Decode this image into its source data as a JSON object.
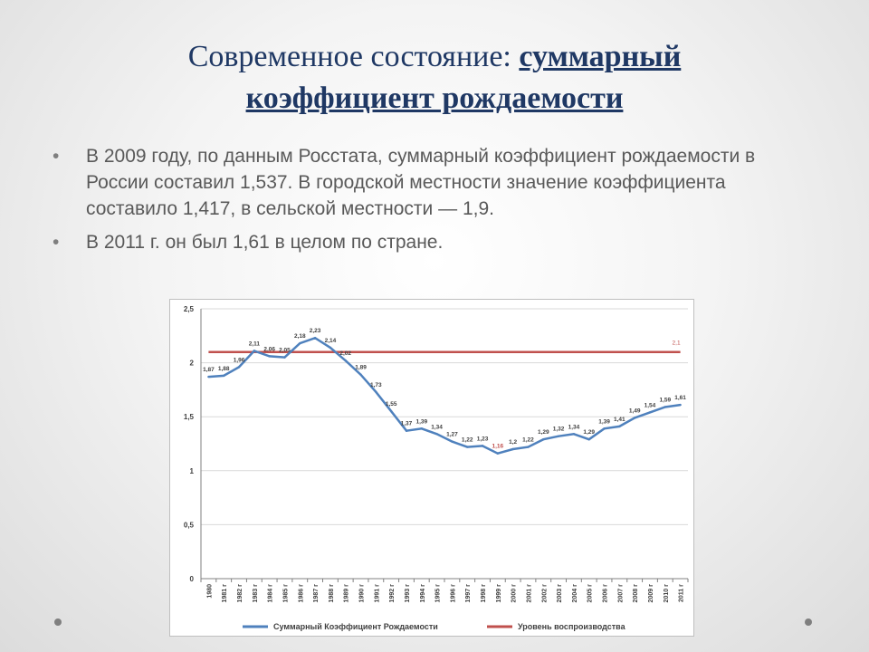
{
  "slide": {
    "title_plain": "Современное состояние: ",
    "title_emph_1": "суммарный",
    "title_emph_2": "коэффициент рождаемости",
    "bullets": [
      "В 2009 году, по данным Росстата, суммарный коэффициент рождаемости в России составил 1,537. В городской местности значение коэффициента составило 1,417, в сельской местности — 1,9.",
      "В 2011 г. он был 1,61 в целом по стране."
    ]
  },
  "chart_data": {
    "type": "line",
    "categories": [
      "1980",
      "1981 г",
      "1982 г",
      "1983 г",
      "1984 г",
      "1985 г",
      "1986 г",
      "1987 г",
      "1988 г",
      "1989 г",
      "1990 г",
      "1991 г",
      "1992 г",
      "1993 г",
      "1994 г",
      "1995 г",
      "1996 г",
      "1997 г",
      "1998 г",
      "1999 г",
      "2000 г",
      "2001 г",
      "2002 г",
      "2003 г",
      "2004 г",
      "2005 г",
      "2006 г",
      "2007 г",
      "2008 г",
      "2009 г",
      "2010 г",
      "2011 г"
    ],
    "series": [
      {
        "name": "Суммарный Коэффициент Рождаемости",
        "color": "#4f81bd",
        "values": [
          1.87,
          1.88,
          1.96,
          2.11,
          2.06,
          2.05,
          2.18,
          2.23,
          2.14,
          2.02,
          1.89,
          1.73,
          1.55,
          1.37,
          1.39,
          1.34,
          1.27,
          1.22,
          1.23,
          1.16,
          1.2,
          1.22,
          1.29,
          1.32,
          1.34,
          1.29,
          1.39,
          1.41,
          1.49,
          1.54,
          1.59,
          1.61
        ],
        "labels": [
          "1,87",
          "1,88",
          "1,96",
          "2,11",
          "2,06",
          "2,05",
          "2,18",
          "2,23",
          "2,14",
          "2,02",
          "1,89",
          "1,73",
          "1,55",
          "1,37",
          "1,39",
          "1,34",
          "1,27",
          "1,22",
          "1,23",
          "1,16",
          "1,2",
          "1,22",
          "1,29",
          "1,32",
          "1,34",
          "1,29",
          "1,39",
          "1,41",
          "1,49",
          "1,54",
          "1,59",
          "1,61"
        ]
      },
      {
        "name": "Уровень воспроизводства",
        "color": "#c0504d",
        "values": [
          2.1,
          2.1,
          2.1,
          2.1,
          2.1,
          2.1,
          2.1,
          2.1,
          2.1,
          2.1,
          2.1,
          2.1,
          2.1,
          2.1,
          2.1,
          2.1,
          2.1,
          2.1,
          2.1,
          2.1,
          2.1,
          2.1,
          2.1,
          2.1,
          2.1,
          2.1,
          2.1,
          2.1,
          2.1,
          2.1,
          2.1,
          2.1
        ],
        "end_label": "2,1"
      }
    ],
    "y_ticks": [
      0,
      0.5,
      1,
      1.5,
      2,
      2.5
    ],
    "y_tick_labels": [
      "0",
      "0,5",
      "1",
      "1,5",
      "2",
      "2,5"
    ],
    "ylim": [
      0,
      2.5
    ],
    "grid": true,
    "legend_position": "bottom"
  }
}
